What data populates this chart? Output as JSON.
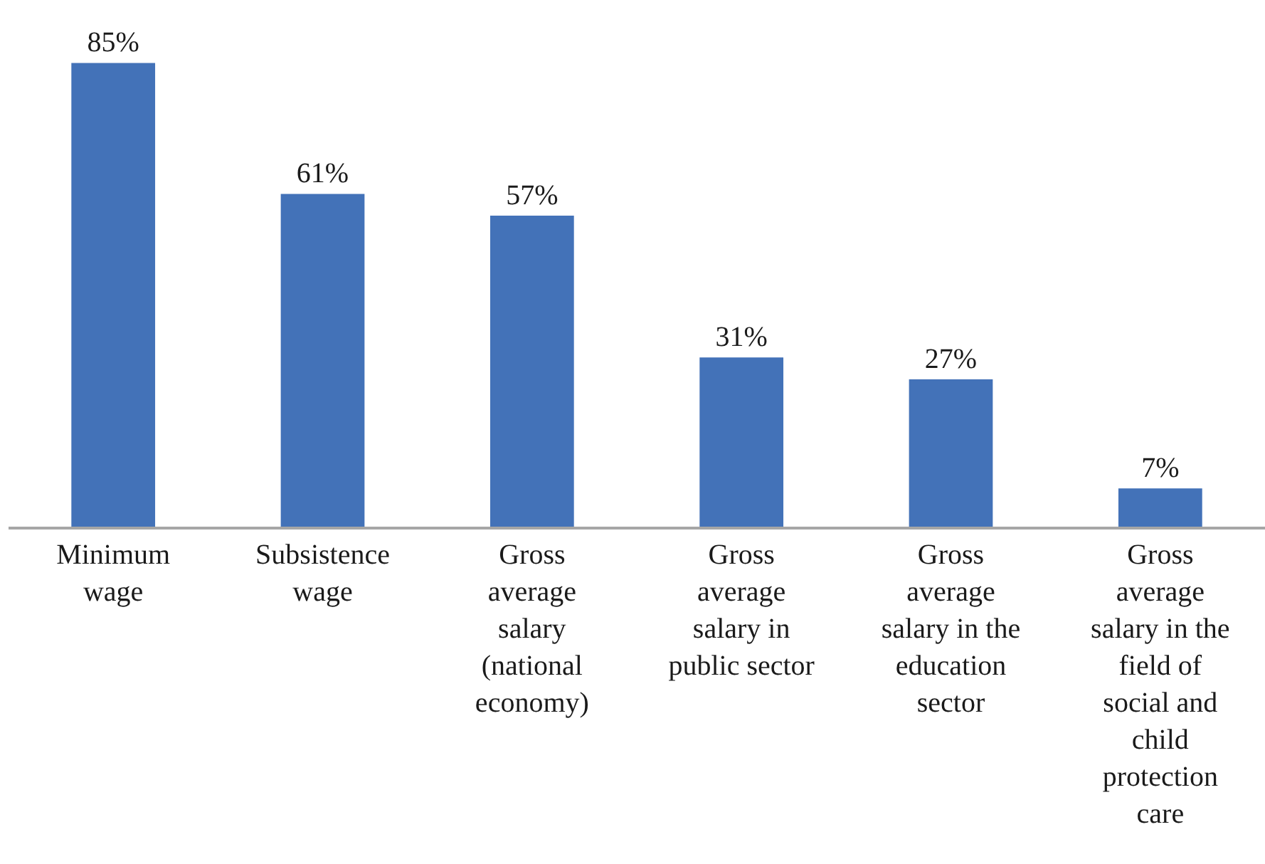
{
  "chart_data": {
    "type": "bar",
    "categories": [
      "Minimum wage",
      "Subsistence wage",
      "Gross average salary (national economy)",
      "Gross average salary in public sector",
      "Gross average salary in the education sector",
      "Gross average salary in the field of social and child protection care"
    ],
    "values": [
      85,
      61,
      57,
      31,
      27,
      7
    ],
    "value_labels": [
      "85%",
      "61%",
      "57%",
      "31%",
      "27%",
      "7%"
    ],
    "color": "#4372b8"
  }
}
